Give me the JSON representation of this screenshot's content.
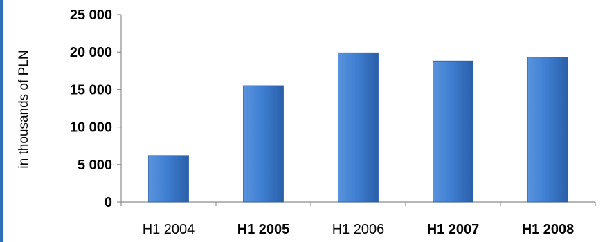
{
  "chart_data": {
    "type": "bar",
    "title": "",
    "xlabel": "",
    "ylabel": "in thousands of PLN",
    "categories": [
      "H1 2004",
      "H1 2005",
      "H1 2006",
      "H1 2007",
      "H1 2008"
    ],
    "category_bold": [
      false,
      true,
      false,
      true,
      true
    ],
    "values": [
      6200,
      15500,
      19900,
      18800,
      19300
    ],
    "ylim": [
      0,
      25000
    ],
    "yticks": [
      0,
      5000,
      10000,
      15000,
      20000,
      25000
    ],
    "ytick_labels": [
      "0",
      "5 000",
      "10 000",
      "15 000",
      "20 000",
      "25 000"
    ],
    "grid": false,
    "legend": "none",
    "colors": {
      "bar_light": "#5a93dd",
      "bar_mid": "#3f7fd2",
      "bar_dark": "#2a5fa8",
      "axis": "#8c8c8c",
      "frame": "#2f6fb8"
    }
  }
}
